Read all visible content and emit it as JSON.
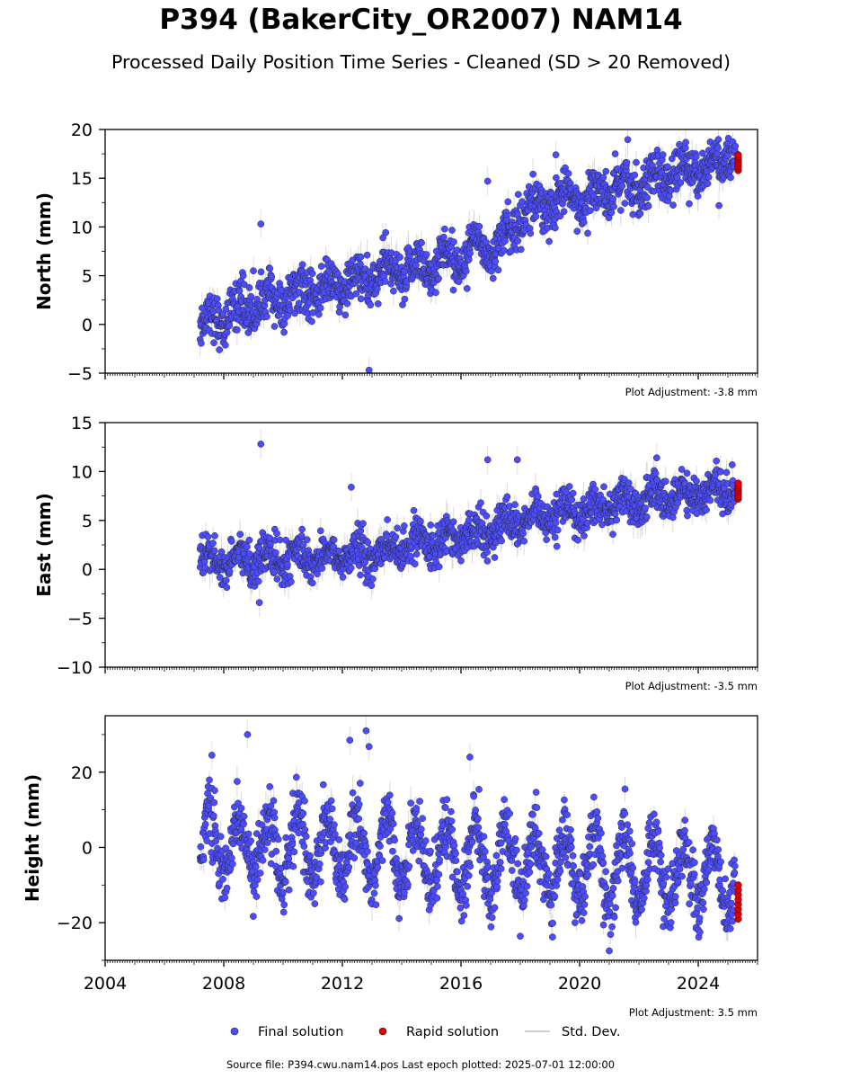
{
  "title": "P394 (BakerCity_OR2007) NAM14",
  "subtitle": "Processed Daily Position Time Series - Cleaned (SD > 20 Removed)",
  "x_tick_labels": [
    "2004",
    "2008",
    "2012",
    "2016",
    "2020",
    "2024"
  ],
  "legend": {
    "final": "Final solution",
    "rapid": "Rapid solution",
    "std": "Std. Dev."
  },
  "footer": "Source file: P394.cwu.nam14.pos  Last epoch plotted: 2025-07-01 12:00:00",
  "colors": {
    "final": "#4c4cff",
    "rapid": "#e00000",
    "std": "#bdbdbd"
  },
  "chart_data": [
    {
      "type": "scatter",
      "ylabel": "North (mm)",
      "ylim": [
        -5,
        20
      ],
      "xlim": [
        2004,
        2026
      ],
      "yticks": [
        -5,
        0,
        5,
        10,
        15,
        20
      ],
      "adjustment": "Plot Adjustment: -3.8 mm",
      "series": [
        {
          "name": "Final solution",
          "x_range": [
            2007.2,
            2025.25
          ],
          "trend": [
            [
              2007.2,
              0.0
            ],
            [
              2009.0,
              2.0
            ],
            [
              2012.0,
              4.0
            ],
            [
              2016.0,
              7.0
            ],
            [
              2017.7,
              9.0
            ],
            [
              2017.9,
              11.5
            ],
            [
              2020.0,
              13.0
            ],
            [
              2025.25,
              17.0
            ]
          ],
          "seasonal_amplitude": 1.0,
          "scatter": 1.2,
          "outliers": [
            [
              2009.25,
              10.3
            ],
            [
              2012.9,
              -4.7
            ],
            [
              2016.9,
              14.7
            ],
            [
              2019.2,
              17.4
            ],
            [
              2024.7,
              12.2
            ],
            [
              2009.0,
              5.5
            ]
          ]
        },
        {
          "name": "Rapid solution",
          "x": 2025.35,
          "y_range": [
            15.8,
            17.4
          ]
        }
      ]
    },
    {
      "type": "scatter",
      "ylabel": "East (mm)",
      "ylim": [
        -10,
        15
      ],
      "xlim": [
        2004,
        2026
      ],
      "yticks": [
        -10,
        -5,
        0,
        5,
        10,
        15
      ],
      "adjustment": "Plot Adjustment: -3.5 mm",
      "series": [
        {
          "name": "Final solution",
          "x_range": [
            2007.2,
            2025.25
          ],
          "trend": [
            [
              2007.2,
              0.8
            ],
            [
              2013.0,
              1.5
            ],
            [
              2016.0,
              3.5
            ],
            [
              2020.0,
              6.0
            ],
            [
              2025.25,
              8.5
            ]
          ],
          "seasonal_amplitude": 0.8,
          "scatter": 1.0,
          "outliers": [
            [
              2009.25,
              12.8
            ],
            [
              2009.2,
              -3.4
            ],
            [
              2016.9,
              11.2
            ],
            [
              2017.9,
              11.2
            ],
            [
              2012.3,
              8.4
            ],
            [
              2022.6,
              11.4
            ]
          ]
        },
        {
          "name": "Rapid solution",
          "x": 2025.35,
          "y_range": [
            7.2,
            8.8
          ]
        }
      ]
    },
    {
      "type": "scatter",
      "ylabel": "Height (mm)",
      "ylim": [
        -30,
        35
      ],
      "xlim": [
        2004,
        2026
      ],
      "yticks": [
        -20,
        0,
        20
      ],
      "adjustment": "Plot Adjustment: 3.5 mm",
      "series": [
        {
          "name": "Final solution",
          "x_range": [
            2007.2,
            2025.25
          ],
          "trend": [
            [
              2007.2,
              0.0
            ],
            [
              2013.0,
              0.0
            ],
            [
              2016.0,
              -3.0
            ],
            [
              2020.0,
              -5.0
            ],
            [
              2025.25,
              -8.0
            ]
          ],
          "seasonal_amplitude": 9.0,
          "scatter": 4.0,
          "outliers": [
            [
              2008.8,
              30.0
            ],
            [
              2012.25,
              28.5
            ],
            [
              2012.8,
              31.0
            ],
            [
              2012.9,
              26.8
            ],
            [
              2007.6,
              24.5
            ],
            [
              2016.3,
              24.0
            ],
            [
              2021.0,
              -27.5
            ]
          ]
        },
        {
          "name": "Rapid solution",
          "x": 2025.35,
          "y_range": [
            -19.0,
            -10.0
          ]
        }
      ]
    }
  ]
}
